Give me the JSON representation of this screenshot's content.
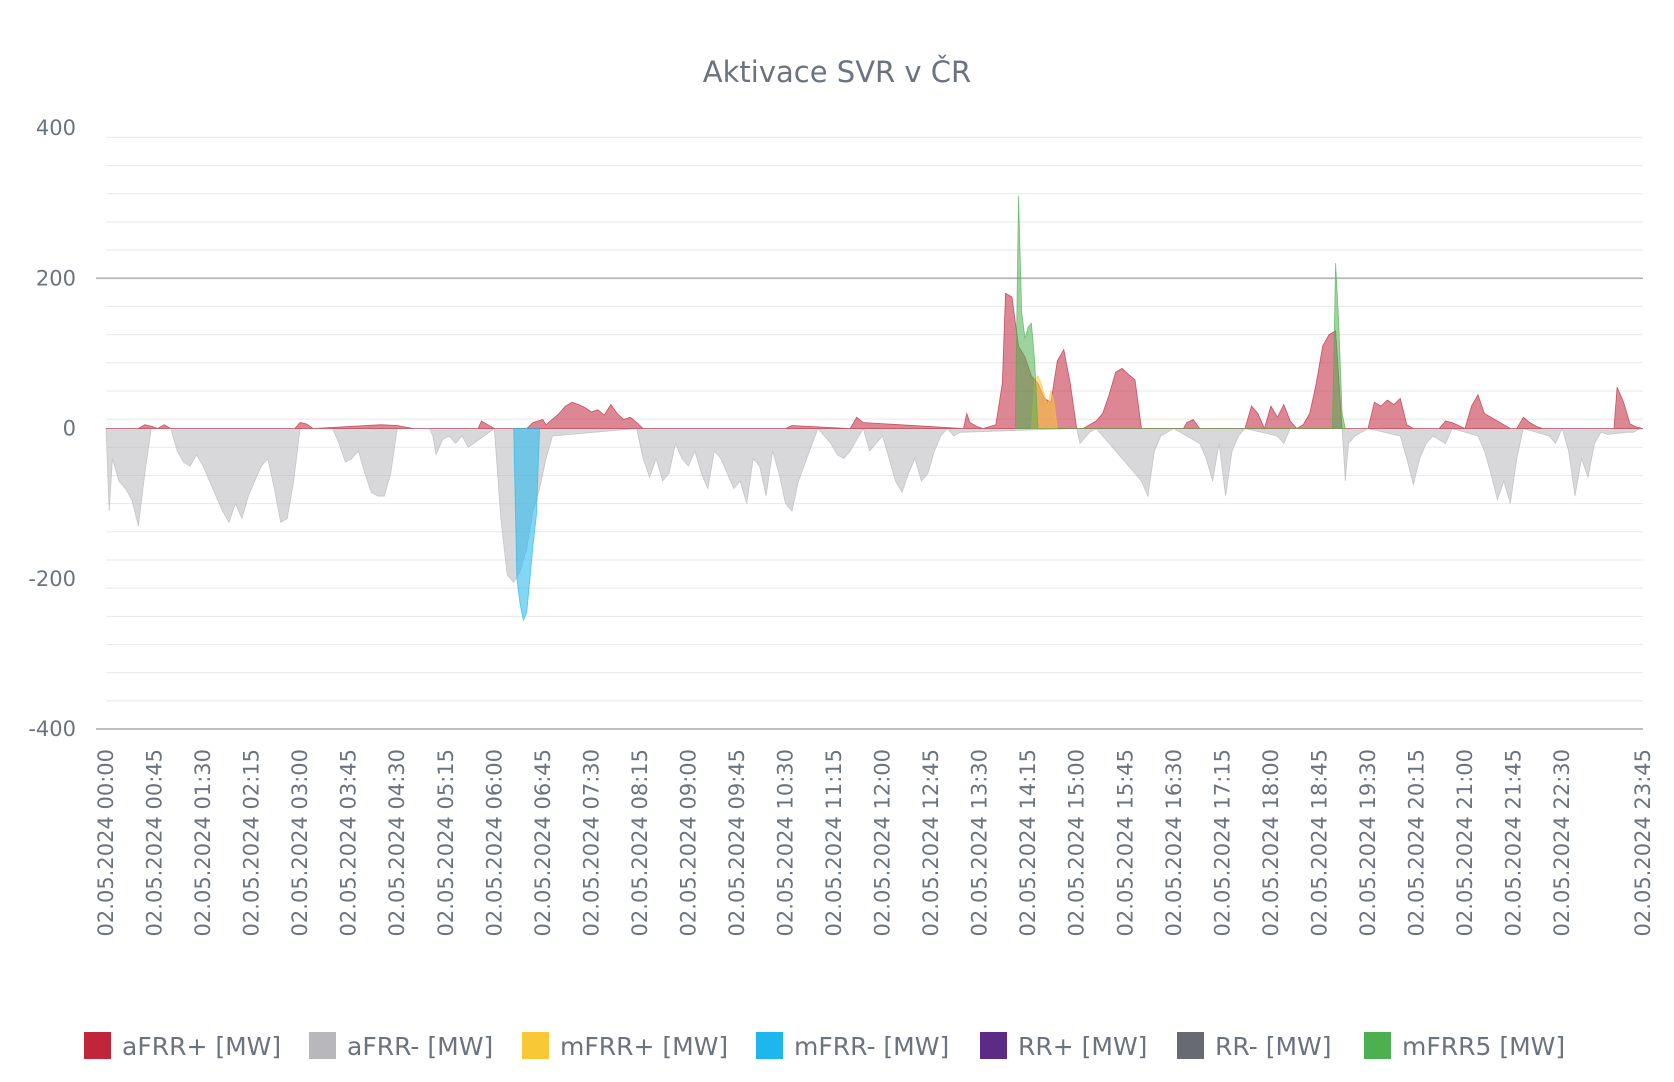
{
  "chart_data": {
    "type": "area",
    "title": "Aktivace SVR v ČR",
    "xlabel": "",
    "ylabel": "",
    "ylim": [
      -400,
      400
    ],
    "yticks": [
      400,
      200,
      0,
      -200,
      -400
    ],
    "grid": true,
    "legend_position": "bottom",
    "x_tick_labels": [
      "02.05.2024 00:00",
      "02.05.2024 00:45",
      "02.05.2024 01:30",
      "02.05.2024 02:15",
      "02.05.2024 03:00",
      "02.05.2024 03:45",
      "02.05.2024 04:30",
      "02.05.2024 05:15",
      "02.05.2024 06:00",
      "02.05.2024 06:45",
      "02.05.2024 07:30",
      "02.05.2024 08:15",
      "02.05.2024 09:00",
      "02.05.2024 09:45",
      "02.05.2024 10:30",
      "02.05.2024 11:15",
      "02.05.2024 12:00",
      "02.05.2024 12:45",
      "02.05.2024 13:30",
      "02.05.2024 14:15",
      "02.05.2024 15:00",
      "02.05.2024 15:45",
      "02.05.2024 16:30",
      "02.05.2024 17:15",
      "02.05.2024 18:00",
      "02.05.2024 18:45",
      "02.05.2024 19:30",
      "02.05.2024 20:15",
      "02.05.2024 21:00",
      "02.05.2024 21:45",
      "02.05.2024 22:30",
      "02.05.2024 23:45"
    ],
    "series": [
      {
        "name": "aFRR+ [MW]",
        "color": "#c0253a",
        "x": [
          "00:00",
          "00:30",
          "00:36",
          "00:42",
          "00:48",
          "00:54",
          "01:00",
          "01:06",
          "02:55",
          "03:00",
          "03:06",
          "03:12",
          "04:15",
          "04:30",
          "04:45",
          "05:45",
          "05:48",
          "05:54",
          "06:00",
          "06:30",
          "06:36",
          "06:45",
          "06:48",
          "07:00",
          "07:06",
          "07:12",
          "07:18",
          "07:24",
          "07:30",
          "07:36",
          "07:42",
          "07:48",
          "07:54",
          "08:00",
          "08:06",
          "08:12",
          "08:18",
          "10:30",
          "10:36",
          "11:30",
          "11:36",
          "11:42",
          "13:15",
          "13:18",
          "13:21",
          "13:27",
          "13:33",
          "13:45",
          "13:51",
          "13:54",
          "14:00",
          "14:06",
          "14:12",
          "14:18",
          "14:24",
          "14:30",
          "14:36",
          "14:42",
          "14:48",
          "14:54",
          "15:00",
          "15:06",
          "15:12",
          "15:18",
          "15:24",
          "15:30",
          "15:36",
          "15:42",
          "15:48",
          "15:54",
          "16:00",
          "16:06",
          "16:12",
          "16:39",
          "16:42",
          "16:48",
          "16:54",
          "17:36",
          "17:42",
          "17:48",
          "17:54",
          "18:00",
          "18:06",
          "18:12",
          "18:18",
          "18:24",
          "18:30",
          "18:36",
          "18:42",
          "18:48",
          "18:54",
          "19:00",
          "19:06",
          "19:30",
          "19:36",
          "19:42",
          "19:48",
          "19:54",
          "20:00",
          "20:06",
          "20:12",
          "20:36",
          "20:42",
          "20:48",
          "21:00",
          "21:06",
          "21:12",
          "21:18",
          "21:42",
          "21:48",
          "21:54",
          "22:00",
          "22:06",
          "22:12",
          "23:15",
          "23:18",
          "23:21",
          "23:27",
          "23:33",
          "23:39",
          "23:45"
        ],
        "values": [
          0,
          0,
          5,
          3,
          0,
          5,
          0,
          0,
          0,
          8,
          6,
          0,
          5,
          4,
          0,
          0,
          10,
          5,
          0,
          0,
          8,
          12,
          5,
          20,
          30,
          35,
          32,
          28,
          22,
          25,
          18,
          32,
          20,
          12,
          15,
          8,
          0,
          0,
          4,
          0,
          15,
          8,
          0,
          20,
          8,
          3,
          0,
          5,
          60,
          180,
          175,
          110,
          95,
          70,
          60,
          40,
          35,
          90,
          105,
          60,
          0,
          0,
          5,
          10,
          20,
          45,
          75,
          80,
          72,
          65,
          0,
          0,
          0,
          0,
          8,
          12,
          0,
          0,
          30,
          20,
          0,
          30,
          15,
          32,
          10,
          0,
          5,
          20,
          60,
          110,
          125,
          130,
          0,
          0,
          35,
          30,
          38,
          32,
          40,
          5,
          0,
          0,
          10,
          8,
          0,
          30,
          45,
          20,
          0,
          0,
          15,
          8,
          3,
          0,
          0,
          0,
          55,
          35,
          6,
          2,
          0
        ]
      },
      {
        "name": "aFRR- [MW]",
        "color": "#b8b8bc",
        "x": [
          "00:00",
          "00:03",
          "00:06",
          "00:12",
          "00:18",
          "00:24",
          "00:30",
          "00:36",
          "00:42",
          "01:00",
          "01:06",
          "01:12",
          "01:18",
          "01:24",
          "01:30",
          "01:36",
          "01:42",
          "01:48",
          "01:54",
          "02:00",
          "02:06",
          "02:12",
          "02:18",
          "02:24",
          "02:30",
          "02:36",
          "02:42",
          "02:48",
          "02:54",
          "03:00",
          "03:30",
          "03:36",
          "03:42",
          "03:48",
          "03:54",
          "04:00",
          "04:06",
          "04:12",
          "04:18",
          "04:24",
          "04:30",
          "05:00",
          "05:03",
          "05:06",
          "05:12",
          "05:18",
          "05:24",
          "05:30",
          "05:36",
          "06:00",
          "06:06",
          "06:12",
          "06:18",
          "06:24",
          "06:30",
          "06:36",
          "06:42",
          "06:48",
          "06:54",
          "08:12",
          "08:18",
          "08:24",
          "08:30",
          "08:36",
          "08:42",
          "08:48",
          "08:54",
          "09:00",
          "09:06",
          "09:12",
          "09:18",
          "09:24",
          "09:30",
          "09:36",
          "09:42",
          "09:48",
          "09:54",
          "10:00",
          "10:06",
          "10:12",
          "10:18",
          "10:24",
          "10:30",
          "10:36",
          "10:42",
          "11:00",
          "11:06",
          "11:12",
          "11:18",
          "11:24",
          "11:30",
          "11:42",
          "11:48",
          "11:54",
          "12:00",
          "12:06",
          "12:12",
          "12:18",
          "12:24",
          "12:30",
          "12:36",
          "12:42",
          "12:48",
          "12:54",
          "13:00",
          "13:06",
          "13:12",
          "15:00",
          "15:03",
          "15:06",
          "15:12",
          "15:18",
          "16:00",
          "16:06",
          "16:12",
          "16:18",
          "16:24",
          "16:30",
          "16:54",
          "17:00",
          "17:06",
          "17:12",
          "17:18",
          "17:24",
          "17:30",
          "17:36",
          "18:06",
          "18:12",
          "18:18",
          "19:06",
          "19:09",
          "19:12",
          "19:18",
          "19:24",
          "19:30",
          "20:00",
          "20:06",
          "20:12",
          "20:18",
          "20:24",
          "20:30",
          "20:36",
          "20:42",
          "20:48",
          "21:12",
          "21:18",
          "21:24",
          "21:30",
          "21:36",
          "21:42",
          "21:48",
          "21:54",
          "22:18",
          "22:24",
          "22:30",
          "22:36",
          "22:42",
          "22:48",
          "22:54",
          "23:00",
          "23:06",
          "23:12",
          "23:30",
          "23:36",
          "23:42",
          "23:45"
        ],
        "values": [
          0,
          -110,
          -40,
          -70,
          -80,
          -95,
          -130,
          -60,
          0,
          0,
          -30,
          -45,
          -50,
          -35,
          -50,
          -70,
          -90,
          -110,
          -125,
          -100,
          -120,
          -90,
          -70,
          -50,
          -40,
          -80,
          -125,
          -120,
          -70,
          0,
          0,
          -20,
          -45,
          -40,
          -30,
          -60,
          -85,
          -90,
          -90,
          -60,
          0,
          0,
          -10,
          -35,
          -15,
          -10,
          -20,
          -10,
          -25,
          0,
          -120,
          -195,
          -205,
          -190,
          -160,
          -110,
          -80,
          -40,
          -10,
          0,
          -40,
          -65,
          -40,
          -70,
          -60,
          -20,
          -40,
          -50,
          -30,
          -60,
          -80,
          -30,
          -40,
          -60,
          -80,
          -70,
          -100,
          -40,
          -50,
          -90,
          -30,
          -60,
          -100,
          -110,
          -70,
          0,
          -10,
          -20,
          -35,
          -40,
          -30,
          0,
          -30,
          -20,
          -10,
          -40,
          -70,
          -85,
          -60,
          -40,
          -70,
          -60,
          -30,
          -10,
          0,
          -10,
          -5,
          0,
          -20,
          -15,
          -5,
          0,
          -70,
          -90,
          -30,
          -10,
          -5,
          0,
          -20,
          -40,
          -70,
          -20,
          -90,
          -30,
          -10,
          0,
          -10,
          -20,
          0,
          0,
          -70,
          -20,
          -10,
          -5,
          0,
          -10,
          -40,
          -75,
          -40,
          -20,
          -10,
          -15,
          -20,
          0,
          -10,
          -30,
          -60,
          -95,
          -70,
          -100,
          -40,
          0,
          -10,
          -20,
          0,
          -30,
          -90,
          -40,
          -65,
          -20,
          -5,
          -8,
          -5,
          -5,
          0,
          0
        ]
      },
      {
        "name": "mFRR+ [MW]",
        "color": "#f9c836",
        "x": [
          "14:18",
          "14:21",
          "14:24",
          "14:27",
          "14:30",
          "14:33",
          "14:36",
          "14:39",
          "14:42"
        ],
        "values": [
          0,
          65,
          70,
          60,
          45,
          30,
          50,
          35,
          0
        ]
      },
      {
        "name": "mFRR- [MW]",
        "color": "#1db7ee",
        "x": [
          "06:18",
          "06:21",
          "06:24",
          "06:27",
          "06:30",
          "06:33",
          "06:36",
          "06:39",
          "06:42"
        ],
        "values": [
          0,
          -200,
          -235,
          -255,
          -245,
          -200,
          -155,
          -115,
          0
        ]
      },
      {
        "name": "RR+ [MW]",
        "color": "#5c2b86",
        "x": [],
        "values": []
      },
      {
        "name": "RR- [MW]",
        "color": "#676a70",
        "x": [],
        "values": []
      },
      {
        "name": "mFRR5 [MW]",
        "color": "#4caf50",
        "x": [
          "14:03",
          "14:06",
          "14:09",
          "14:12",
          "14:15",
          "14:18",
          "14:21",
          "14:24",
          "18:57",
          "19:00",
          "19:03",
          "19:06",
          "19:09"
        ],
        "values": [
          0,
          310,
          155,
          120,
          135,
          140,
          90,
          0,
          0,
          220,
          140,
          20,
          0
        ]
      }
    ]
  }
}
